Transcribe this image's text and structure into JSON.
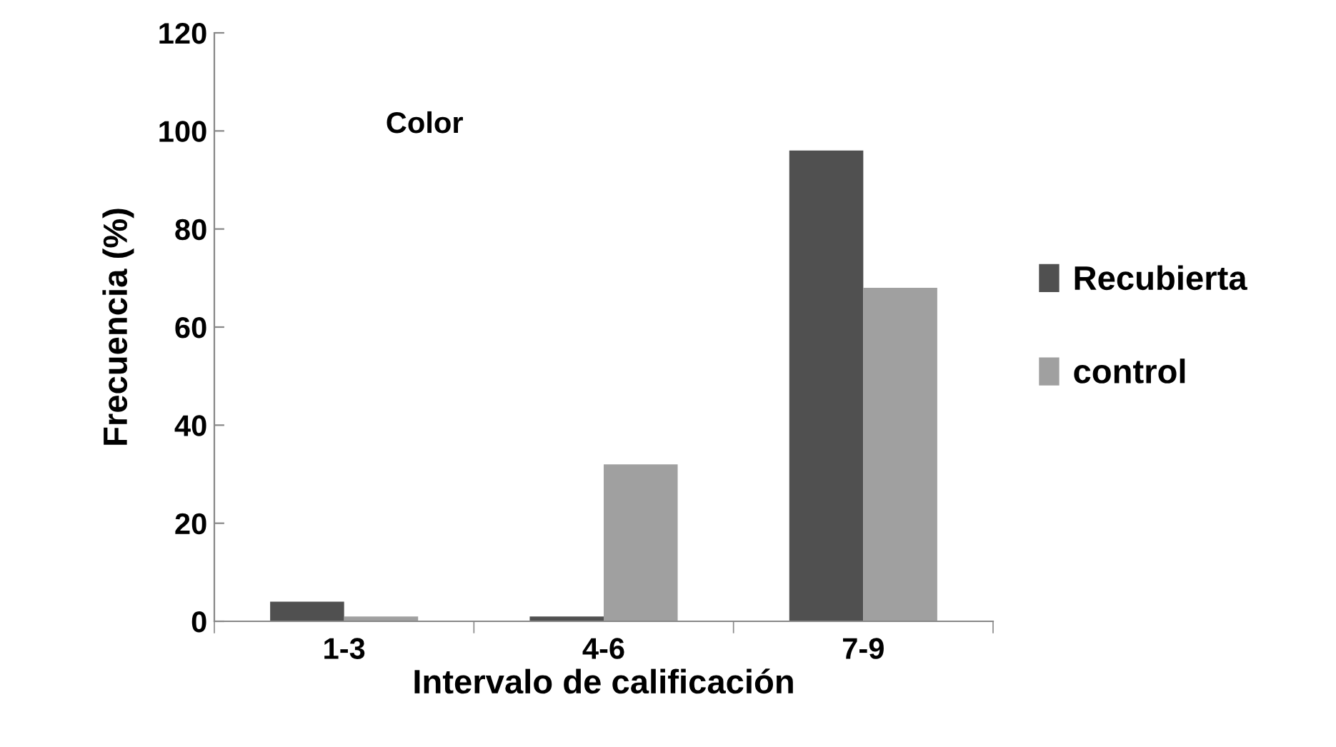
{
  "chart_data": {
    "type": "bar",
    "xlabel": "Intervalo de calificación",
    "ylabel": "Frecuencia (%)",
    "categories": [
      "1-3",
      "4-6",
      "7-9"
    ],
    "series": [
      {
        "name": "Recubierta",
        "color": "#505050",
        "values": [
          4,
          1,
          96
        ]
      },
      {
        "name": "control",
        "color": "#a0a0a0",
        "values": [
          1,
          32,
          68
        ]
      }
    ],
    "ylim": [
      0,
      120
    ],
    "yticks": [
      0,
      20,
      40,
      60,
      80,
      100,
      120
    ],
    "grid": false,
    "legend": "right",
    "annotations": [
      "Color"
    ]
  }
}
